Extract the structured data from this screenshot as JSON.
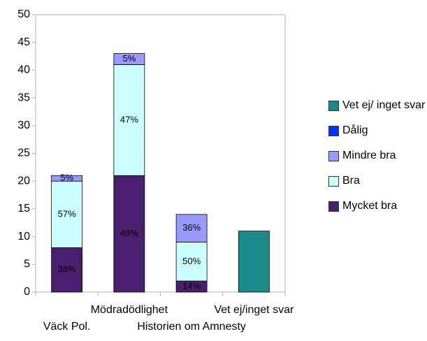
{
  "chart_data": {
    "type": "stacked_bar",
    "categories": [
      "Väck Pol.",
      "Mödradödlighet",
      "Historien om Amnesty",
      "Vet ej/inget svar"
    ],
    "series": [
      {
        "name": "Mycket bra",
        "color": "#4b1f6f",
        "values": [
          8,
          21,
          2,
          null
        ],
        "value_labels": [
          "38%",
          "49%",
          "14%",
          null
        ]
      },
      {
        "name": "Bra",
        "color": "#ccffff",
        "values": [
          12,
          20,
          7,
          null
        ],
        "value_labels": [
          "57%",
          "47%",
          "50%",
          null
        ]
      },
      {
        "name": "Mindre bra",
        "color": "#9999ff",
        "values": [
          1,
          2,
          5,
          null
        ],
        "value_labels": [
          "5%",
          "5%",
          "36%",
          null
        ]
      },
      {
        "name": "Dålig",
        "color": "#0033ff",
        "values": [
          0,
          0,
          0,
          null
        ]
      },
      {
        "name": "Vet ej/ inget svar",
        "color": "#1a8a8a",
        "values": [
          null,
          null,
          null,
          11
        ]
      }
    ],
    "ylim": [
      0,
      50
    ],
    "yticks": [
      0,
      5,
      10,
      15,
      20,
      25,
      30,
      35,
      40,
      45,
      50
    ],
    "grid": false
  }
}
